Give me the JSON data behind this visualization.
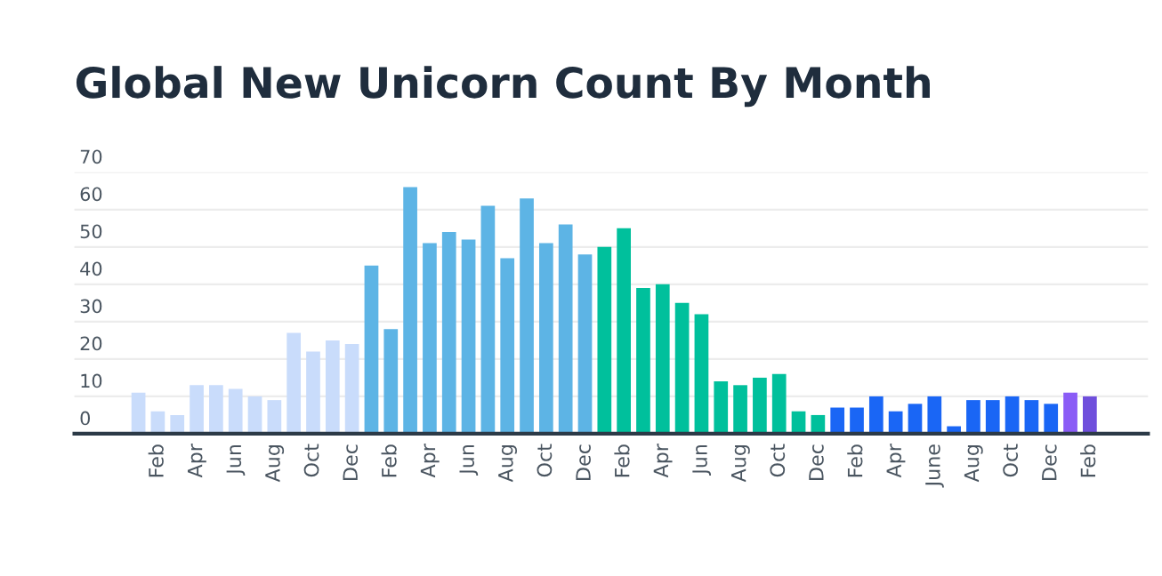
{
  "chart_data": {
    "type": "bar",
    "title": "Global New Unicorn Count By Month",
    "categories": [
      null,
      "Feb",
      null,
      "Apr",
      null,
      "Jun",
      null,
      "Aug",
      null,
      "Oct",
      null,
      "Dec",
      null,
      "Feb",
      null,
      "Apr",
      null,
      "Jun",
      null,
      "Aug",
      null,
      "Oct",
      null,
      "Dec",
      null,
      "Feb",
      null,
      "Apr",
      null,
      "Jun",
      null,
      "Aug",
      null,
      "Oct",
      null,
      "Dec",
      null,
      "Feb",
      null,
      "Apr",
      null,
      "June",
      null,
      "Aug",
      null,
      "Oct",
      null,
      "Dec",
      null,
      "Feb"
    ],
    "values": [
      11,
      6,
      5,
      13,
      13,
      12,
      10,
      9,
      27,
      22,
      25,
      24,
      45,
      28,
      66,
      51,
      54,
      52,
      61,
      47,
      63,
      51,
      56,
      48,
      50,
      55,
      39,
      40,
      35,
      32,
      14,
      13,
      15,
      16,
      6,
      5,
      7,
      7,
      10,
      6,
      8,
      10,
      2,
      9,
      9,
      10,
      9,
      8,
      11,
      10
    ],
    "colors": [
      "#c9dcfb",
      "#c9dcfb",
      "#c9dcfb",
      "#c9dcfb",
      "#c9dcfb",
      "#c9dcfb",
      "#c9dcfb",
      "#c9dcfb",
      "#c9dcfb",
      "#c9dcfb",
      "#c9dcfb",
      "#c9dcfb",
      "#5db4e5",
      "#5db4e5",
      "#5db4e5",
      "#5db4e5",
      "#5db4e5",
      "#5db4e5",
      "#5db4e5",
      "#5db4e5",
      "#5db4e5",
      "#5db4e5",
      "#5db4e5",
      "#5db4e5",
      "#00c09c",
      "#00c09c",
      "#00c09c",
      "#00c09c",
      "#00c09c",
      "#00c09c",
      "#00c09c",
      "#00c09c",
      "#00c09c",
      "#00c09c",
      "#00c09c",
      "#00c09c",
      "#1a66f5",
      "#1a66f5",
      "#1a66f5",
      "#1a66f5",
      "#1a66f5",
      "#1a66f5",
      "#1a66f5",
      "#1a66f5",
      "#1a66f5",
      "#1a66f5",
      "#1a66f5",
      "#1a66f5",
      "#8a5cf6",
      "#6f4fdc"
    ],
    "ylim": [
      0,
      70
    ],
    "yticks": [
      0,
      10,
      20,
      30,
      40,
      50,
      60,
      70
    ],
    "grid": "y"
  }
}
